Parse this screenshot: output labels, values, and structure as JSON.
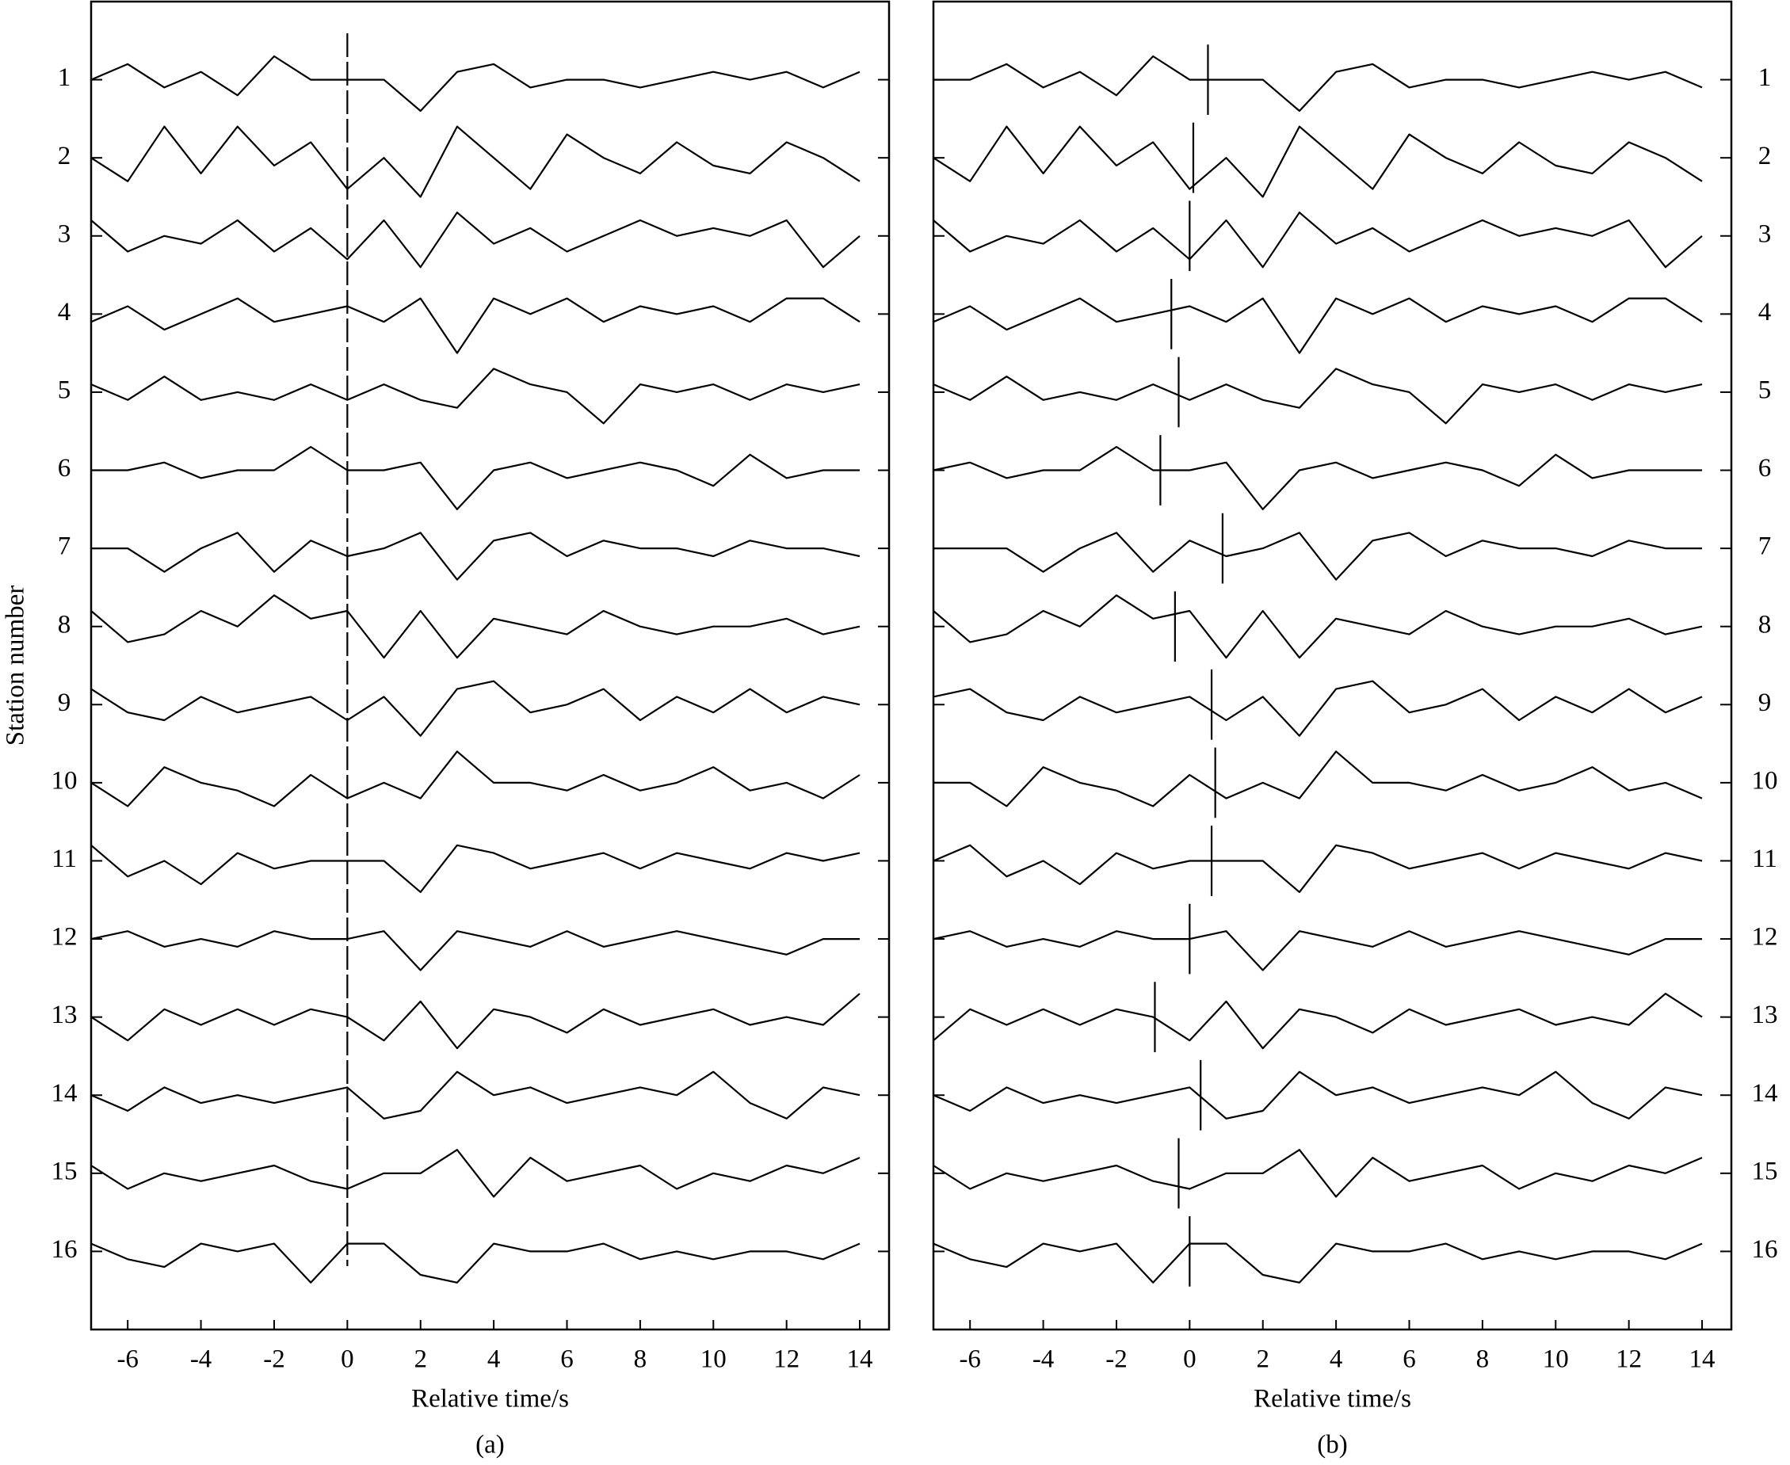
{
  "chart_data": [
    {
      "type": "line",
      "ylabel": "Station number",
      "xlabel": "Relative time/s",
      "caption": "(a)",
      "xlim": [
        -7,
        14.8
      ],
      "xticks": [
        -6,
        -4,
        -2,
        0,
        2,
        4,
        6,
        8,
        10,
        12,
        14
      ],
      "ylim": [
        17,
        0
      ],
      "yticks": [
        1,
        2,
        3,
        4,
        5,
        6,
        7,
        8,
        9,
        10,
        11,
        12,
        13,
        14,
        15,
        16
      ],
      "ytick_side": "left",
      "color": "#000000",
      "pick_style": "full-dashed",
      "picks": [
        0
      ],
      "x": [
        -7,
        -6,
        -5,
        -4,
        -3,
        -2,
        -1,
        0,
        1,
        2,
        3,
        4,
        5,
        6,
        7,
        8,
        9,
        10,
        11,
        12,
        13,
        14
      ],
      "series": [
        {
          "values": [
            1.0,
            0.8,
            1.1,
            0.9,
            1.2,
            0.7,
            1.0,
            1.0,
            1.0,
            1.4,
            0.9,
            0.8,
            1.1,
            1.0,
            1.0,
            1.1,
            1.0,
            0.9,
            1.0,
            0.9,
            1.1,
            0.9
          ]
        },
        {
          "values": [
            2.0,
            2.3,
            1.6,
            2.2,
            1.6,
            2.1,
            1.8,
            2.4,
            2.0,
            2.5,
            1.6,
            2.0,
            2.4,
            1.7,
            2.0,
            2.2,
            1.8,
            2.1,
            2.2,
            1.8,
            2.0,
            2.3
          ]
        },
        {
          "values": [
            2.8,
            3.2,
            3.0,
            3.1,
            2.8,
            3.2,
            2.9,
            3.3,
            2.8,
            3.4,
            2.7,
            3.1,
            2.9,
            3.2,
            3.0,
            2.8,
            3.0,
            2.9,
            3.0,
            2.8,
            3.4,
            3.0
          ]
        },
        {
          "values": [
            4.1,
            3.9,
            4.2,
            4.0,
            3.8,
            4.1,
            4.0,
            3.9,
            4.1,
            3.8,
            4.5,
            3.8,
            4.0,
            3.8,
            4.1,
            3.9,
            4.0,
            3.9,
            4.1,
            3.8,
            3.8,
            4.1
          ]
        },
        {
          "values": [
            4.9,
            5.1,
            4.8,
            5.1,
            5.0,
            5.1,
            4.9,
            5.1,
            4.9,
            5.1,
            5.2,
            4.7,
            4.9,
            5.0,
            5.4,
            4.9,
            5.0,
            4.9,
            5.1,
            4.9,
            5.0,
            4.9
          ]
        },
        {
          "values": [
            6.0,
            6.0,
            5.9,
            6.1,
            6.0,
            6.0,
            5.7,
            6.0,
            6.0,
            5.9,
            6.5,
            6.0,
            5.9,
            6.1,
            6.0,
            5.9,
            6.0,
            6.2,
            5.8,
            6.1,
            6.0,
            6.0
          ]
        },
        {
          "values": [
            7.0,
            7.0,
            7.3,
            7.0,
            6.8,
            7.3,
            6.9,
            7.1,
            7.0,
            6.8,
            7.4,
            6.9,
            6.8,
            7.1,
            6.9,
            7.0,
            7.0,
            7.1,
            6.9,
            7.0,
            7.0,
            7.1
          ]
        },
        {
          "values": [
            7.8,
            8.2,
            8.1,
            7.8,
            8.0,
            7.6,
            7.9,
            7.8,
            8.4,
            7.8,
            8.4,
            7.9,
            8.0,
            8.1,
            7.8,
            8.0,
            8.1,
            8.0,
            8.0,
            7.9,
            8.1,
            8.0
          ]
        },
        {
          "values": [
            8.8,
            9.1,
            9.2,
            8.9,
            9.1,
            9.0,
            8.9,
            9.2,
            8.9,
            9.4,
            8.8,
            8.7,
            9.1,
            9.0,
            8.8,
            9.2,
            8.9,
            9.1,
            8.8,
            9.1,
            8.9,
            9.0
          ]
        },
        {
          "values": [
            10.0,
            10.3,
            9.8,
            10.0,
            10.1,
            10.3,
            9.9,
            10.2,
            10.0,
            10.2,
            9.6,
            10.0,
            10.0,
            10.1,
            9.9,
            10.1,
            10.0,
            9.8,
            10.1,
            10.0,
            10.2,
            9.9
          ]
        },
        {
          "values": [
            10.8,
            11.2,
            11.0,
            11.3,
            10.9,
            11.1,
            11.0,
            11.0,
            11.0,
            11.4,
            10.8,
            10.9,
            11.1,
            11.0,
            10.9,
            11.1,
            10.9,
            11.0,
            11.1,
            10.9,
            11.0,
            10.9
          ]
        },
        {
          "values": [
            12.0,
            11.9,
            12.1,
            12.0,
            12.1,
            11.9,
            12.0,
            12.0,
            11.9,
            12.4,
            11.9,
            12.0,
            12.1,
            11.9,
            12.1,
            12.0,
            11.9,
            12.0,
            12.1,
            12.2,
            12.0,
            12.0
          ]
        },
        {
          "values": [
            13.0,
            13.3,
            12.9,
            13.1,
            12.9,
            13.1,
            12.9,
            13.0,
            13.3,
            12.8,
            13.4,
            12.9,
            13.0,
            13.2,
            12.9,
            13.1,
            13.0,
            12.9,
            13.1,
            13.0,
            13.1,
            12.7
          ]
        },
        {
          "values": [
            14.0,
            14.2,
            13.9,
            14.1,
            14.0,
            14.1,
            14.0,
            13.9,
            14.3,
            14.2,
            13.7,
            14.0,
            13.9,
            14.1,
            14.0,
            13.9,
            14.0,
            13.7,
            14.1,
            14.3,
            13.9,
            14.0
          ]
        },
        {
          "values": [
            14.9,
            15.2,
            15.0,
            15.1,
            15.0,
            14.9,
            15.1,
            15.2,
            15.0,
            15.0,
            14.7,
            15.3,
            14.8,
            15.1,
            15.0,
            14.9,
            15.2,
            15.0,
            15.1,
            14.9,
            15.0,
            14.8
          ]
        },
        {
          "values": [
            15.9,
            16.1,
            16.2,
            15.9,
            16.0,
            15.9,
            16.4,
            15.9,
            15.9,
            16.3,
            16.4,
            15.9,
            16.0,
            16.0,
            15.9,
            16.1,
            16.0,
            16.1,
            16.0,
            16.0,
            16.1,
            15.9
          ]
        }
      ]
    },
    {
      "type": "line",
      "xlabel": "Relative time/s",
      "caption": "(b)",
      "xlim": [
        -7,
        14.8
      ],
      "xticks": [
        -6,
        -4,
        -2,
        0,
        2,
        4,
        6,
        8,
        10,
        12,
        14
      ],
      "ylim": [
        17,
        0
      ],
      "yticks": [
        1,
        2,
        3,
        4,
        5,
        6,
        7,
        8,
        9,
        10,
        11,
        12,
        13,
        14,
        15,
        16
      ],
      "ytick_side": "right",
      "color": "#000000",
      "pick_style": "per-trace",
      "picks": [
        0.5,
        0.1,
        0.0,
        -0.5,
        -0.3,
        -0.8,
        0.9,
        -0.4,
        0.6,
        0.7,
        0.6,
        0.0,
        -0.95,
        0.3,
        -0.3,
        0.0
      ],
      "x": [
        -7,
        -6,
        -5,
        -4,
        -3,
        -2,
        -1,
        0,
        1,
        2,
        3,
        4,
        5,
        6,
        7,
        8,
        9,
        10,
        11,
        12,
        13,
        14
      ],
      "series": [
        {
          "values": [
            1.0,
            1.0,
            0.8,
            1.1,
            0.9,
            1.2,
            0.7,
            1.0,
            1.0,
            1.0,
            1.4,
            0.9,
            0.8,
            1.1,
            1.0,
            1.0,
            1.1,
            1.0,
            0.9,
            1.0,
            0.9,
            1.1
          ]
        },
        {
          "values": [
            2.0,
            2.3,
            1.6,
            2.2,
            1.6,
            2.1,
            1.8,
            2.4,
            2.0,
            2.5,
            1.6,
            2.0,
            2.4,
            1.7,
            2.0,
            2.2,
            1.8,
            2.1,
            2.2,
            1.8,
            2.0,
            2.3
          ]
        },
        {
          "values": [
            2.8,
            3.2,
            3.0,
            3.1,
            2.8,
            3.2,
            2.9,
            3.3,
            2.8,
            3.4,
            2.7,
            3.1,
            2.9,
            3.2,
            3.0,
            2.8,
            3.0,
            2.9,
            3.0,
            2.8,
            3.4,
            3.0
          ]
        },
        {
          "values": [
            4.1,
            3.9,
            4.2,
            4.0,
            3.8,
            4.1,
            4.0,
            3.9,
            4.1,
            3.8,
            4.5,
            3.8,
            4.0,
            3.8,
            4.1,
            3.9,
            4.0,
            3.9,
            4.1,
            3.8,
            3.8,
            4.1
          ]
        },
        {
          "values": [
            4.9,
            5.1,
            4.8,
            5.1,
            5.0,
            5.1,
            4.9,
            5.1,
            4.9,
            5.1,
            5.2,
            4.7,
            4.9,
            5.0,
            5.4,
            4.9,
            5.0,
            4.9,
            5.1,
            4.9,
            5.0,
            4.9
          ]
        },
        {
          "values": [
            6.0,
            5.9,
            6.1,
            6.0,
            6.0,
            5.7,
            6.0,
            6.0,
            5.9,
            6.5,
            6.0,
            5.9,
            6.1,
            6.0,
            5.9,
            6.0,
            6.2,
            5.8,
            6.1,
            6.0,
            6.0,
            6.0
          ]
        },
        {
          "values": [
            7.0,
            7.0,
            7.0,
            7.3,
            7.0,
            6.8,
            7.3,
            6.9,
            7.1,
            7.0,
            6.8,
            7.4,
            6.9,
            6.8,
            7.1,
            6.9,
            7.0,
            7.0,
            7.1,
            6.9,
            7.0,
            7.0
          ]
        },
        {
          "values": [
            7.8,
            8.2,
            8.1,
            7.8,
            8.0,
            7.6,
            7.9,
            7.8,
            8.4,
            7.8,
            8.4,
            7.9,
            8.0,
            8.1,
            7.8,
            8.0,
            8.1,
            8.0,
            8.0,
            7.9,
            8.1,
            8.0
          ]
        },
        {
          "values": [
            8.9,
            8.8,
            9.1,
            9.2,
            8.9,
            9.1,
            9.0,
            8.9,
            9.2,
            8.9,
            9.4,
            8.8,
            8.7,
            9.1,
            9.0,
            8.8,
            9.2,
            8.9,
            9.1,
            8.8,
            9.1,
            8.9
          ]
        },
        {
          "values": [
            10.0,
            10.0,
            10.3,
            9.8,
            10.0,
            10.1,
            10.3,
            9.9,
            10.2,
            10.0,
            10.2,
            9.6,
            10.0,
            10.0,
            10.1,
            9.9,
            10.1,
            10.0,
            9.8,
            10.1,
            10.0,
            10.2
          ]
        },
        {
          "values": [
            11.0,
            10.8,
            11.2,
            11.0,
            11.3,
            10.9,
            11.1,
            11.0,
            11.0,
            11.0,
            11.4,
            10.8,
            10.9,
            11.1,
            11.0,
            10.9,
            11.1,
            10.9,
            11.0,
            11.1,
            10.9,
            11.0
          ]
        },
        {
          "values": [
            12.0,
            11.9,
            12.1,
            12.0,
            12.1,
            11.9,
            12.0,
            12.0,
            11.9,
            12.4,
            11.9,
            12.0,
            12.1,
            11.9,
            12.1,
            12.0,
            11.9,
            12.0,
            12.1,
            12.2,
            12.0,
            12.0
          ]
        },
        {
          "values": [
            13.3,
            12.9,
            13.1,
            12.9,
            13.1,
            12.9,
            13.0,
            13.3,
            12.8,
            13.4,
            12.9,
            13.0,
            13.2,
            12.9,
            13.1,
            13.0,
            12.9,
            13.1,
            13.0,
            13.1,
            12.7,
            13.0
          ]
        },
        {
          "values": [
            14.0,
            14.2,
            13.9,
            14.1,
            14.0,
            14.1,
            14.0,
            13.9,
            14.3,
            14.2,
            13.7,
            14.0,
            13.9,
            14.1,
            14.0,
            13.9,
            14.0,
            13.7,
            14.1,
            14.3,
            13.9,
            14.0
          ]
        },
        {
          "values": [
            14.9,
            15.2,
            15.0,
            15.1,
            15.0,
            14.9,
            15.1,
            15.2,
            15.0,
            15.0,
            14.7,
            15.3,
            14.8,
            15.1,
            15.0,
            14.9,
            15.2,
            15.0,
            15.1,
            14.9,
            15.0,
            14.8
          ]
        },
        {
          "values": [
            15.9,
            16.1,
            16.2,
            15.9,
            16.0,
            15.9,
            16.4,
            15.9,
            15.9,
            16.3,
            16.4,
            15.9,
            16.0,
            16.0,
            15.9,
            16.1,
            16.0,
            16.1,
            16.0,
            16.0,
            16.1,
            15.9
          ]
        }
      ]
    }
  ]
}
